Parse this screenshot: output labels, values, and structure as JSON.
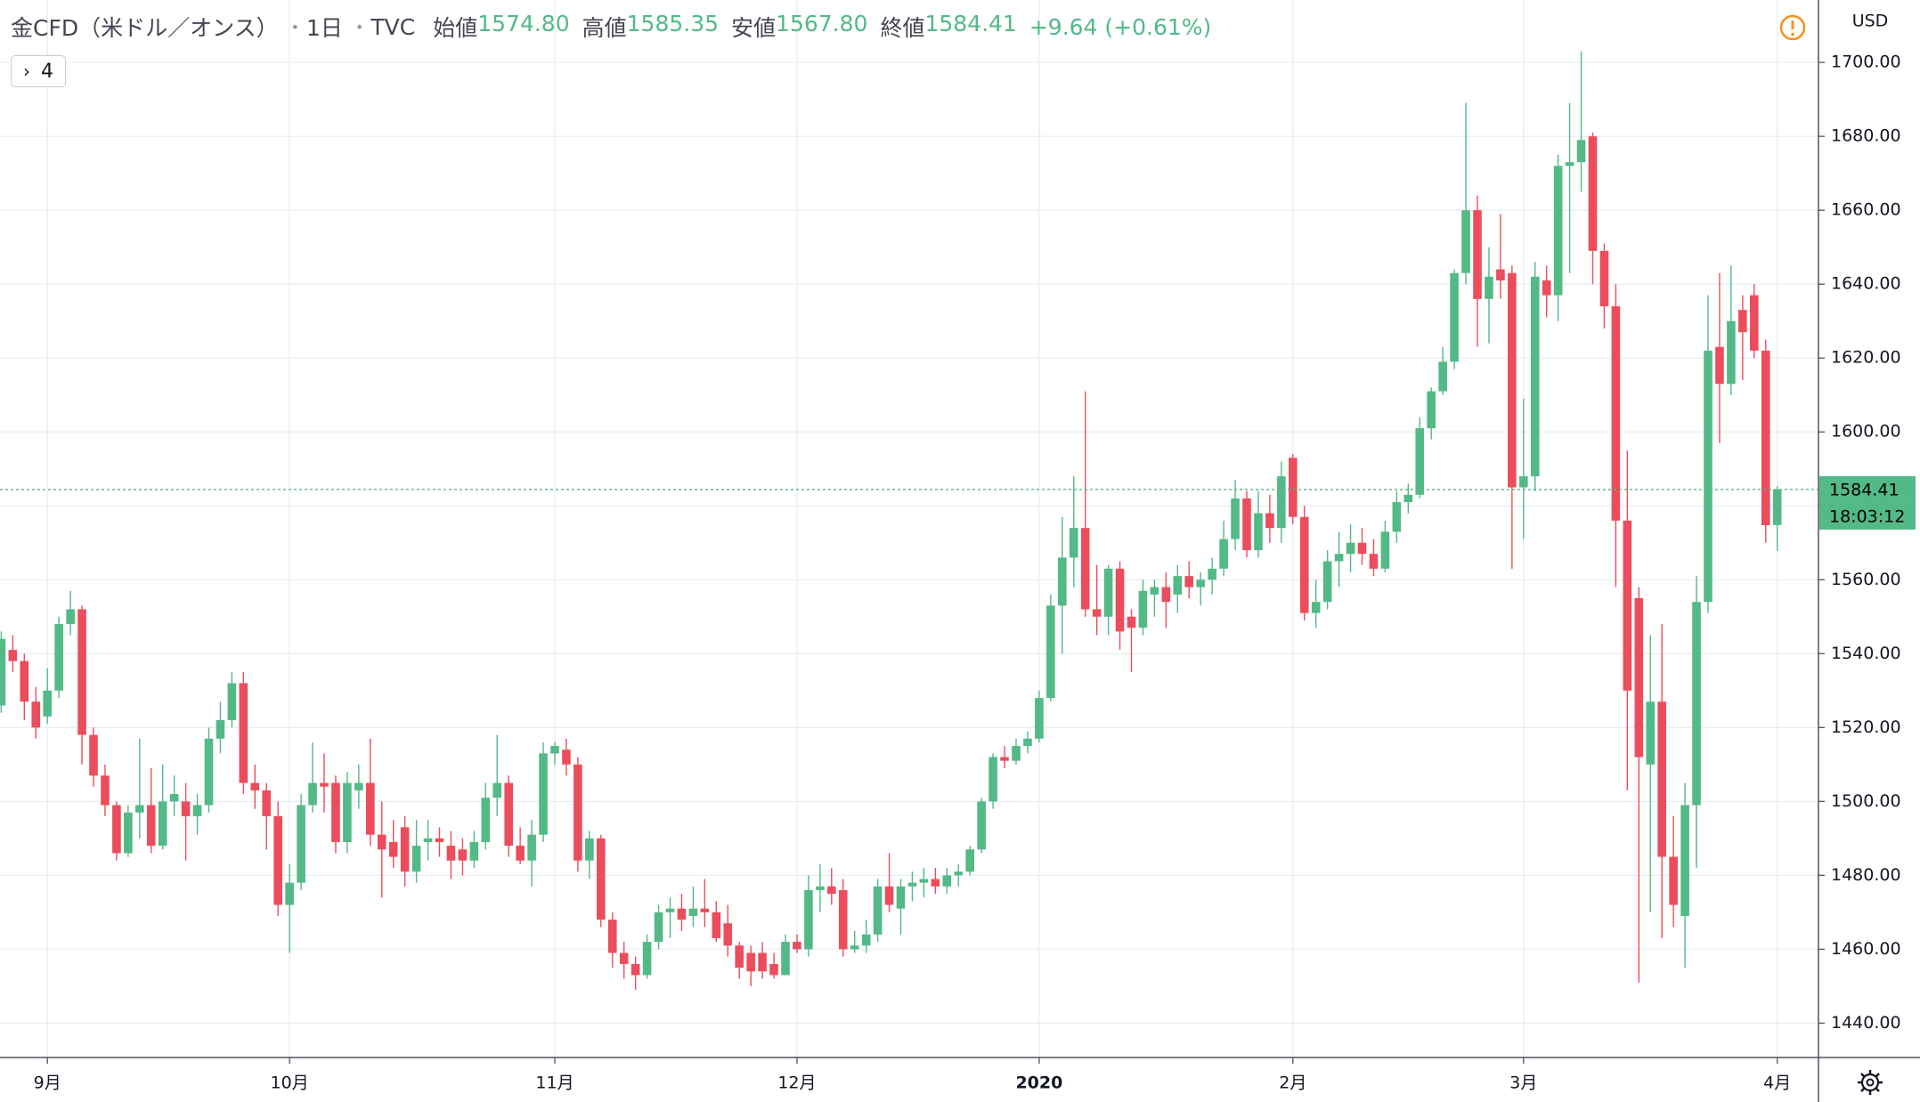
{
  "chart_data": {
    "type": "candlestick",
    "header": {
      "symbol": "金CFD（米ドル／オンス）",
      "interval": "1日",
      "exchange": "TVC",
      "legend": [
        {
          "label": "始値",
          "value": "1574.80"
        },
        {
          "label": "高値",
          "value": "1585.35"
        },
        {
          "label": "安値",
          "value": "1567.80"
        },
        {
          "label": "終値",
          "value": "1584.41"
        }
      ],
      "change": "+9.64 (+0.61%)"
    },
    "indicator_count": "4",
    "currency": "USD",
    "countdown": "18:03:12",
    "up_color": "#53b987",
    "down_color": "#eb4d5c",
    "grid": true,
    "categories": [
      null,
      null,
      null,
      null,
      "9月",
      null,
      null,
      null,
      null,
      null,
      null,
      null,
      null,
      null,
      null,
      null,
      null,
      null,
      null,
      null,
      null,
      null,
      null,
      null,
      null,
      "10月",
      null,
      null,
      null,
      null,
      null,
      null,
      null,
      null,
      null,
      null,
      null,
      null,
      null,
      null,
      null,
      null,
      null,
      null,
      null,
      null,
      null,
      null,
      "11月",
      null,
      null,
      null,
      null,
      null,
      null,
      null,
      null,
      null,
      null,
      null,
      null,
      null,
      null,
      null,
      null,
      null,
      null,
      null,
      null,
      "12月",
      null,
      null,
      null,
      null,
      null,
      null,
      null,
      null,
      null,
      null,
      null,
      null,
      null,
      null,
      null,
      null,
      null,
      null,
      null,
      null,
      "2020",
      null,
      null,
      null,
      null,
      null,
      null,
      null,
      null,
      null,
      null,
      null,
      null,
      null,
      null,
      null,
      null,
      null,
      null,
      null,
      null,
      null,
      "2月",
      null,
      null,
      null,
      null,
      null,
      null,
      null,
      null,
      null,
      null,
      null,
      null,
      null,
      null,
      null,
      null,
      null,
      null,
      null,
      "3月",
      null,
      null,
      null,
      null,
      null,
      null,
      null,
      null,
      null,
      null,
      null,
      null,
      null,
      null,
      null,
      null,
      null,
      null,
      null,
      null,
      null,
      "4月"
    ],
    "open": [
      1526,
      1541,
      1538,
      1527,
      1523,
      1530,
      1548,
      1552,
      1518,
      1507,
      1499,
      1486,
      1497,
      1499,
      1488,
      1500,
      1500,
      1496,
      1499,
      1517,
      1522,
      1532,
      1505,
      1503,
      1496,
      1472,
      1478,
      1499,
      1505,
      1505,
      1489,
      1503,
      1505,
      1491,
      1489,
      1493,
      1481,
      1489,
      1490,
      1488,
      1487,
      1484,
      1489,
      1501,
      1505,
      1488,
      1484,
      1491,
      1513,
      1514,
      1510,
      1484,
      1490,
      1468,
      1459,
      1456,
      1453,
      1462,
      1470,
      1471,
      1469,
      1471,
      1470,
      1467,
      1461,
      1459,
      1459,
      1456,
      1453,
      1462,
      1460,
      1476,
      1477,
      1476,
      1460,
      1461,
      1464,
      1477,
      1471,
      1477,
      1478,
      1479,
      1477,
      1480,
      1481,
      1487,
      1500,
      1512,
      1511,
      1515,
      1517,
      1528,
      1553,
      1566,
      1574,
      1552,
      1550,
      1563,
      1550,
      1547,
      1556,
      1558,
      1556,
      1561,
      1558,
      1560,
      1563,
      1571,
      1582,
      1568,
      1578,
      1574,
      1593,
      1577,
      1551,
      1554,
      1565,
      1567,
      1570,
      1567,
      1563,
      1573,
      1581,
      1583,
      1601,
      1611,
      1619,
      1643,
      1660,
      1636,
      1644,
      1643,
      1585,
      1588,
      1641,
      1637,
      1672,
      1673,
      1680,
      1649,
      1634,
      1576,
      1555,
      1510,
      1527,
      1485,
      1469,
      1499,
      1554,
      1623,
      1613,
      1633,
      1637,
      1622,
      1574.8
    ],
    "high": [
      1546,
      1545,
      1540,
      1531,
      1536,
      1550,
      1557,
      1553,
      1520,
      1510,
      1500,
      1499,
      1517,
      1509,
      1510,
      1507,
      1505,
      1502,
      1520,
      1527,
      1535,
      1535,
      1510,
      1505,
      1500,
      1483,
      1502,
      1516,
      1513,
      1507,
      1508,
      1510,
      1517,
      1500,
      1495,
      1496,
      1495,
      1495,
      1493,
      1492,
      1490,
      1492,
      1505,
      1518,
      1507,
      1493,
      1495,
      1516,
      1516,
      1517,
      1512,
      1492,
      1491,
      1470,
      1462,
      1458,
      1464,
      1472,
      1474,
      1475,
      1477,
      1479,
      1473,
      1472,
      1462,
      1461,
      1462,
      1459,
      1464,
      1464,
      1480,
      1483,
      1482,
      1479,
      1465,
      1468,
      1479,
      1486,
      1479,
      1481,
      1482,
      1482,
      1482,
      1483,
      1488,
      1501,
      1513,
      1515,
      1517,
      1519,
      1530,
      1556,
      1577,
      1588,
      1611,
      1564,
      1564,
      1565,
      1552,
      1560,
      1560,
      1562,
      1564,
      1565,
      1562,
      1566,
      1576,
      1587,
      1584,
      1584,
      1583,
      1592,
      1594,
      1580,
      1560,
      1568,
      1573,
      1575,
      1574,
      1571,
      1576,
      1584,
      1586,
      1604,
      1612,
      1623,
      1644,
      1689,
      1664,
      1650,
      1659,
      1645,
      1609,
      1646,
      1645,
      1675,
      1689,
      1703,
      1681,
      1651,
      1640,
      1595,
      1558,
      1545,
      1548,
      1496,
      1505,
      1561,
      1637,
      1643,
      1645,
      1637,
      1640,
      1625,
      1585.35
    ],
    "low": [
      1524,
      1535,
      1522,
      1517,
      1521,
      1528,
      1545,
      1510,
      1504,
      1496,
      1484,
      1485,
      1490,
      1486,
      1487,
      1496,
      1484,
      1491,
      1497,
      1513,
      1520,
      1502,
      1498,
      1487,
      1469,
      1459,
      1476,
      1497,
      1497,
      1486,
      1486,
      1498,
      1488,
      1474,
      1482,
      1477,
      1478,
      1484,
      1485,
      1479,
      1480,
      1482,
      1487,
      1496,
      1485,
      1483,
      1477,
      1489,
      1510,
      1507,
      1481,
      1479,
      1466,
      1455,
      1452,
      1449,
      1452,
      1460,
      1463,
      1465,
      1466,
      1466,
      1462,
      1458,
      1452,
      1450,
      1452,
      1452,
      1453,
      1459,
      1458,
      1470,
      1472,
      1458,
      1459,
      1459,
      1462,
      1470,
      1464,
      1473,
      1474,
      1475,
      1475,
      1477,
      1480,
      1486,
      1498,
      1509,
      1510,
      1513,
      1516,
      1527,
      1540,
      1558,
      1550,
      1545,
      1545,
      1541,
      1535,
      1545,
      1550,
      1547,
      1551,
      1555,
      1553,
      1556,
      1561,
      1568,
      1566,
      1566,
      1570,
      1570,
      1575,
      1549,
      1547,
      1552,
      1558,
      1562,
      1564,
      1561,
      1562,
      1570,
      1578,
      1582,
      1598,
      1610,
      1617,
      1640,
      1623,
      1624,
      1636,
      1563,
      1571,
      1584,
      1631,
      1630,
      1643,
      1665,
      1640,
      1628,
      1558,
      1503,
      1451,
      1470,
      1463,
      1466,
      1455,
      1482,
      1551,
      1597,
      1610,
      1614,
      1620,
      1570,
      1567.8
    ],
    "close": [
      1544,
      1538,
      1527,
      1520,
      1530,
      1548,
      1552,
      1518,
      1507,
      1499,
      1486,
      1497,
      1499,
      1488,
      1500,
      1502,
      1496,
      1499,
      1517,
      1522,
      1532,
      1505,
      1503,
      1496,
      1472,
      1478,
      1499,
      1505,
      1504,
      1489,
      1505,
      1505,
      1491,
      1487,
      1485,
      1481,
      1488,
      1490,
      1489,
      1484,
      1484,
      1489,
      1501,
      1505,
      1488,
      1484,
      1491,
      1513,
      1515,
      1510,
      1484,
      1490,
      1468,
      1459,
      1456,
      1453,
      1462,
      1470,
      1471,
      1468,
      1471,
      1470,
      1463,
      1461,
      1455,
      1454,
      1454,
      1453,
      1462,
      1460,
      1476,
      1477,
      1475,
      1460,
      1461,
      1464,
      1477,
      1472,
      1477,
      1478,
      1479,
      1477,
      1480,
      1481,
      1487,
      1500,
      1512,
      1511,
      1515,
      1517,
      1528,
      1553,
      1566,
      1574,
      1552,
      1550,
      1563,
      1546,
      1547,
      1557,
      1558,
      1554,
      1561,
      1558,
      1560,
      1563,
      1571,
      1582,
      1568,
      1578,
      1574,
      1588,
      1577,
      1551,
      1554,
      1565,
      1567,
      1570,
      1567,
      1563,
      1573,
      1581,
      1583,
      1601,
      1611,
      1619,
      1643,
      1660,
      1636,
      1642,
      1641,
      1585,
      1588,
      1642,
      1637,
      1672,
      1673,
      1679,
      1649,
      1634,
      1576,
      1530,
      1512,
      1527,
      1485,
      1472,
      1499,
      1554,
      1622,
      1613,
      1630,
      1627,
      1622,
      1574.77,
      1584.41
    ],
    "ylim": [
      1430.7,
      1716.9
    ],
    "yticks": [
      {
        "value": 1440,
        "label": "1440.00"
      },
      {
        "value": 1460,
        "label": "1460.00"
      },
      {
        "value": 1480,
        "label": "1480.00"
      },
      {
        "value": 1500,
        "label": "1500.00"
      },
      {
        "value": 1520,
        "label": "1520.00"
      },
      {
        "value": 1540,
        "label": "1540.00"
      },
      {
        "value": 1560,
        "label": "1560.00"
      },
      {
        "value": 1580,
        "label": "1580.00"
      },
      {
        "value": 1600,
        "label": "1600.00"
      },
      {
        "value": 1620,
        "label": "1620.00"
      },
      {
        "value": 1640,
        "label": "1640.00"
      },
      {
        "value": 1660,
        "label": "1660.00"
      },
      {
        "value": 1680,
        "label": "1680.00"
      },
      {
        "value": 1700,
        "label": "1700.00"
      }
    ]
  }
}
